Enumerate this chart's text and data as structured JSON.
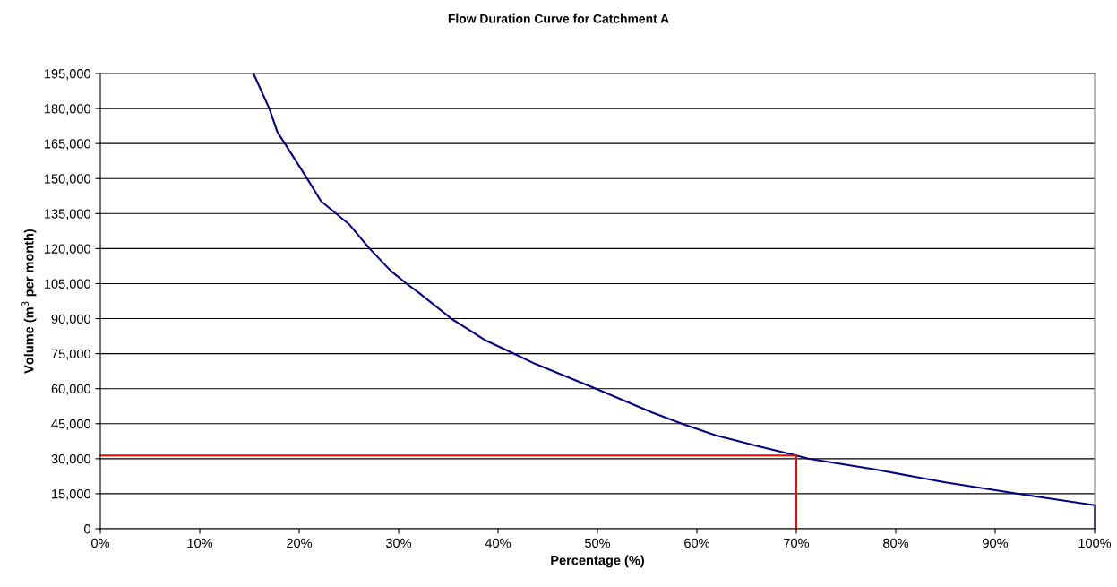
{
  "chart_data": {
    "type": "line",
    "title": "Flow Duration Curve for Catchment A",
    "xlabel": "Percentage (%)",
    "ylabel": "Volume (m$^{3}$ per month)",
    "series": [
      {
        "color": "#000080",
        "x": [
          15.4,
          17.0,
          17.8,
          20.6,
          22.2,
          25.05,
          27.0,
          29.2,
          30.8,
          32.0,
          35.3,
          37.2,
          38.6,
          41.3,
          43.7,
          49.8,
          55.5,
          58.6,
          61.9,
          66.1,
          70.0,
          71.2,
          77.9,
          85.0,
          92.9,
          100,
          100
        ],
        "values": [
          195000,
          180000,
          170000,
          151400,
          140300,
          130300,
          120400,
          110500,
          105000,
          101200,
          90000,
          84900,
          81000,
          75600,
          70700,
          60100,
          49800,
          44800,
          40000,
          35400,
          31400,
          30000,
          25400,
          19900,
          14600,
          10100,
          0
        ]
      },
      {
        "color": "#ff0000",
        "x": [
          0,
          70.0,
          70.0
        ],
        "values": [
          31400,
          31400,
          0
        ]
      }
    ],
    "xlim": [
      0,
      100
    ],
    "xticks": [
      {
        "value": 0,
        "label": "0%"
      },
      {
        "value": 10,
        "label": "10%"
      },
      {
        "value": 20,
        "label": "20%"
      },
      {
        "value": 30,
        "label": "30%"
      },
      {
        "value": 40,
        "label": "40%"
      },
      {
        "value": 50,
        "label": "50%"
      },
      {
        "value": 60,
        "label": "60%"
      },
      {
        "value": 70,
        "label": "70%"
      },
      {
        "value": 80,
        "label": "80%"
      },
      {
        "value": 90,
        "label": "90%"
      },
      {
        "value": 100,
        "label": "100%"
      }
    ],
    "ylim": [
      0,
      195000
    ],
    "yticks": [
      {
        "value": 0,
        "label": "0"
      },
      {
        "value": 15000,
        "label": "15,000"
      },
      {
        "value": 30000,
        "label": "30,000"
      },
      {
        "value": 45000,
        "label": "45,000"
      },
      {
        "value": 60000,
        "label": "60,000"
      },
      {
        "value": 75000,
        "label": "75,000"
      },
      {
        "value": 90000,
        "label": "90,000"
      },
      {
        "value": 105000,
        "label": "105,000"
      },
      {
        "value": 120000,
        "label": "120,000"
      },
      {
        "value": 135000,
        "label": "135,000"
      },
      {
        "value": 150000,
        "label": "150,000"
      },
      {
        "value": 165000,
        "label": "165,000"
      },
      {
        "value": 180000,
        "label": "180,000"
      },
      {
        "value": 195000,
        "label": "195,000"
      }
    ],
    "grid": "y"
  }
}
